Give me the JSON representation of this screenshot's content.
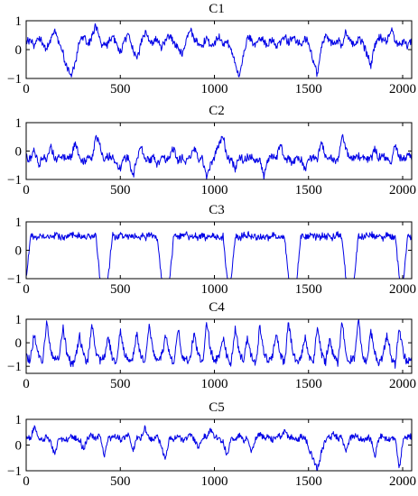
{
  "chart_data": [
    {
      "type": "line",
      "title": "C1",
      "xlim": [
        0,
        2048
      ],
      "ylim": [
        -1,
        1
      ],
      "x_ticks": [
        0,
        500,
        1000,
        1500,
        2000
      ],
      "y_ticks": [
        -1,
        0,
        1
      ],
      "color": "#0000e6",
      "baseline": 0.22,
      "noise": 0.16,
      "series": [
        {
          "values": [
            0.25,
            0.3,
            0.1,
            0.45,
            0.2,
            0.05,
            0.35,
            0.7,
            0.2,
            -0.15,
            -0.6,
            -0.95,
            -0.4,
            0.25,
            0.5,
            0.2,
            0.4,
            0.85,
            0.3,
            0.1,
            0.2,
            0.45,
            0.15,
            -0.1,
            0.3,
            0.55,
            0.0,
            -0.35,
            0.2,
            0.6,
            0.3,
            0.25,
            0.4,
            0.1,
            0.35,
            0.5,
            0.2,
            0.1,
            -0.2,
            0.3,
            0.75,
            0.35,
            0.2,
            0.15,
            0.4,
            0.1,
            0.25,
            0.5,
            0.2,
            0.3,
            0.0,
            -0.5,
            -0.95,
            -0.2,
            0.45,
            0.3,
            0.15,
            0.4,
            0.25,
            0.2,
            0.35,
            0.1,
            0.3,
            0.45,
            0.2,
            0.5,
            0.3,
            0.15,
            0.4,
            0.2,
            -0.4,
            -0.85,
            0.1,
            0.45,
            0.3,
            0.2,
            0.35,
            0.15,
            0.6,
            0.3,
            0.1,
            0.4,
            0.25,
            -0.1,
            -0.55,
            0.2,
            0.45,
            0.3,
            0.35,
            0.7,
            0.25,
            0.2,
            0.3,
            0.1,
            0.35
          ]
        }
      ]
    },
    {
      "type": "line",
      "title": "C2",
      "xlim": [
        0,
        2048
      ],
      "ylim": [
        -1,
        1
      ],
      "x_ticks": [
        0,
        500,
        1000,
        1500,
        2000
      ],
      "y_ticks": [
        -1,
        0,
        1
      ],
      "color": "#0000e6",
      "baseline": -0.22,
      "noise": 0.16,
      "series": [
        {
          "values": [
            -0.2,
            -0.3,
            0.1,
            -0.5,
            -0.2,
            -0.35,
            0.2,
            -0.3,
            -0.25,
            -0.15,
            -0.3,
            -0.2,
            0.3,
            -0.25,
            -0.4,
            -0.2,
            -0.3,
            0.6,
            0.2,
            -0.35,
            -0.2,
            -0.25,
            -0.4,
            -0.6,
            -0.2,
            -0.3,
            -0.9,
            -0.3,
            0.2,
            -0.25,
            -0.3,
            -0.2,
            -0.5,
            -0.25,
            -0.3,
            -0.2,
            0.1,
            -0.3,
            -0.25,
            -0.35,
            -0.2,
            0.1,
            -0.25,
            -0.3,
            -0.95,
            -0.4,
            -0.2,
            0.3,
            0.55,
            -0.25,
            -0.3,
            -0.6,
            -0.2,
            -0.3,
            -0.25,
            -0.2,
            -0.35,
            -0.3,
            -0.95,
            -0.3,
            -0.2,
            -0.25,
            0.3,
            -0.25,
            -0.3,
            -0.4,
            -0.2,
            -0.3,
            -0.7,
            -0.2,
            -0.25,
            -0.3,
            0.3,
            -0.25,
            -0.2,
            -0.3,
            -0.35,
            0.6,
            0.1,
            -0.3,
            -0.25,
            -0.2,
            -0.3,
            -0.25,
            -0.3,
            0.1,
            -0.25,
            -0.2,
            -0.3,
            -0.4,
            0.3,
            -0.25,
            -0.3,
            -0.2,
            -0.25
          ]
        }
      ]
    },
    {
      "type": "line",
      "title": "C3",
      "xlim": [
        0,
        2048
      ],
      "ylim": [
        -1,
        1
      ],
      "x_ticks": [
        0,
        500,
        1000,
        1500,
        2000
      ],
      "y_ticks": [
        -1,
        0,
        1
      ],
      "color": "#0000e6",
      "baseline": 0.45,
      "noise": 0.14,
      "series": [
        {
          "values": [
            -1,
            0.5,
            0.45,
            0.5,
            0.45,
            0.5,
            0.45,
            0.55,
            0.5,
            0.45,
            0.5,
            0.55,
            0.45,
            0.5,
            0.45,
            0.5,
            0.45,
            0.5,
            -1,
            -1,
            -1,
            0.5,
            0.45,
            0.5,
            0.55,
            0.45,
            0.5,
            0.45,
            0.5,
            0.45,
            0.55,
            0.5,
            0.45,
            -1,
            -1,
            -1,
            0.5,
            0.45,
            0.5,
            0.55,
            0.45,
            0.5,
            0.45,
            0.5,
            0.45,
            0.55,
            0.5,
            0.45,
            0.5,
            -1,
            -1,
            0.5,
            0.45,
            0.5,
            0.55,
            0.45,
            0.5,
            0.45,
            0.5,
            0.45,
            0.55,
            0.5,
            0.45,
            0.5,
            -1,
            -1,
            -1,
            0.5,
            0.45,
            0.5,
            0.55,
            0.45,
            0.5,
            0.45,
            0.5,
            0.45,
            0.55,
            0.5,
            -1,
            -1,
            -1,
            0.5,
            0.45,
            0.5,
            0.55,
            0.45,
            0.5,
            0.45,
            0.5,
            0.45,
            0.55,
            -1,
            -1,
            0.5,
            0.45
          ]
        }
      ]
    },
    {
      "type": "line",
      "title": "C4",
      "xlim": [
        0,
        2048
      ],
      "ylim": [
        -1.3,
        1
      ],
      "x_ticks": [
        0,
        500,
        1000,
        1500,
        2000
      ],
      "y_ticks": [
        -1,
        0,
        1
      ],
      "color": "#0000e6",
      "baseline": -0.55,
      "noise": 0.22,
      "series": [
        {
          "values": [
            -0.6,
            -0.8,
            0.4,
            -0.5,
            -0.9,
            1.0,
            -0.4,
            -0.8,
            -0.6,
            0.6,
            -0.5,
            -0.9,
            -0.7,
            0.3,
            -0.6,
            -0.85,
            0.9,
            -0.4,
            -0.8,
            -0.6,
            0.2,
            -0.7,
            -0.9,
            0.5,
            -0.5,
            -0.8,
            -0.6,
            0.4,
            -0.6,
            -0.9,
            0.8,
            -0.5,
            -0.8,
            -0.6,
            0.3,
            -0.5,
            -0.9,
            0.7,
            -0.5,
            -0.8,
            -0.6,
            0.4,
            -0.6,
            -0.9,
            0.9,
            -0.4,
            -0.8,
            -0.6,
            0.3,
            -0.6,
            -0.9,
            0.6,
            -0.5,
            -0.8,
            0.2,
            -0.6,
            -0.9,
            0.8,
            -0.5,
            -0.8,
            -0.6,
            0.4,
            -0.6,
            -0.9,
            0.9,
            -0.5,
            -0.8,
            -0.6,
            0.3,
            -0.6,
            -0.9,
            0.6,
            -0.5,
            -0.8,
            0.2,
            -0.6,
            -0.9,
            0.9,
            -0.5,
            -0.8,
            -0.6,
            1.0,
            -0.6,
            -0.9,
            0.5,
            -0.5,
            -0.8,
            -0.6,
            0.4,
            -0.6,
            -0.9,
            0.7,
            -0.5,
            -0.8,
            -0.6
          ]
        }
      ]
    },
    {
      "type": "line",
      "title": "C5",
      "xlim": [
        0,
        2048
      ],
      "ylim": [
        -1,
        1
      ],
      "x_ticks": [
        0,
        500,
        1000,
        1500,
        2000
      ],
      "y_ticks": [
        -1,
        0,
        1
      ],
      "color": "#0000e6",
      "baseline": 0.3,
      "noise": 0.14,
      "series": [
        {
          "values": [
            0.3,
            0.25,
            0.7,
            0.3,
            0.2,
            0.35,
            0.1,
            -0.35,
            0.3,
            0.25,
            0.2,
            0.4,
            0.3,
            0.25,
            -0.2,
            0.3,
            0.35,
            0.2,
            0.4,
            -0.5,
            0.2,
            0.3,
            0.35,
            0.25,
            0.3,
            0.4,
            -0.3,
            0.3,
            0.25,
            0.7,
            0.3,
            0.2,
            0.4,
            -0.1,
            -0.6,
            0.3,
            0.25,
            0.35,
            0.2,
            0.3,
            0.4,
            0.25,
            -0.15,
            0.3,
            0.35,
            0.6,
            0.3,
            0.25,
            0.1,
            -0.4,
            0.3,
            0.25,
            0.35,
            0.2,
            0.3,
            -0.3,
            0.3,
            0.4,
            0.25,
            0.3,
            0.2,
            0.3,
            0.35,
            0.6,
            0.25,
            0.3,
            0.2,
            0.35,
            0.3,
            -0.2,
            -0.5,
            -0.95,
            -0.3,
            0.2,
            0.3,
            0.4,
            0.25,
            0.3,
            -0.3,
            0.3,
            0.35,
            0.25,
            0.2,
            0.3,
            0.25,
            -0.5,
            0.3,
            0.35,
            0.2,
            0.3,
            0.25,
            -0.95,
            0.3,
            0.35,
            0.3
          ]
        }
      ]
    }
  ]
}
